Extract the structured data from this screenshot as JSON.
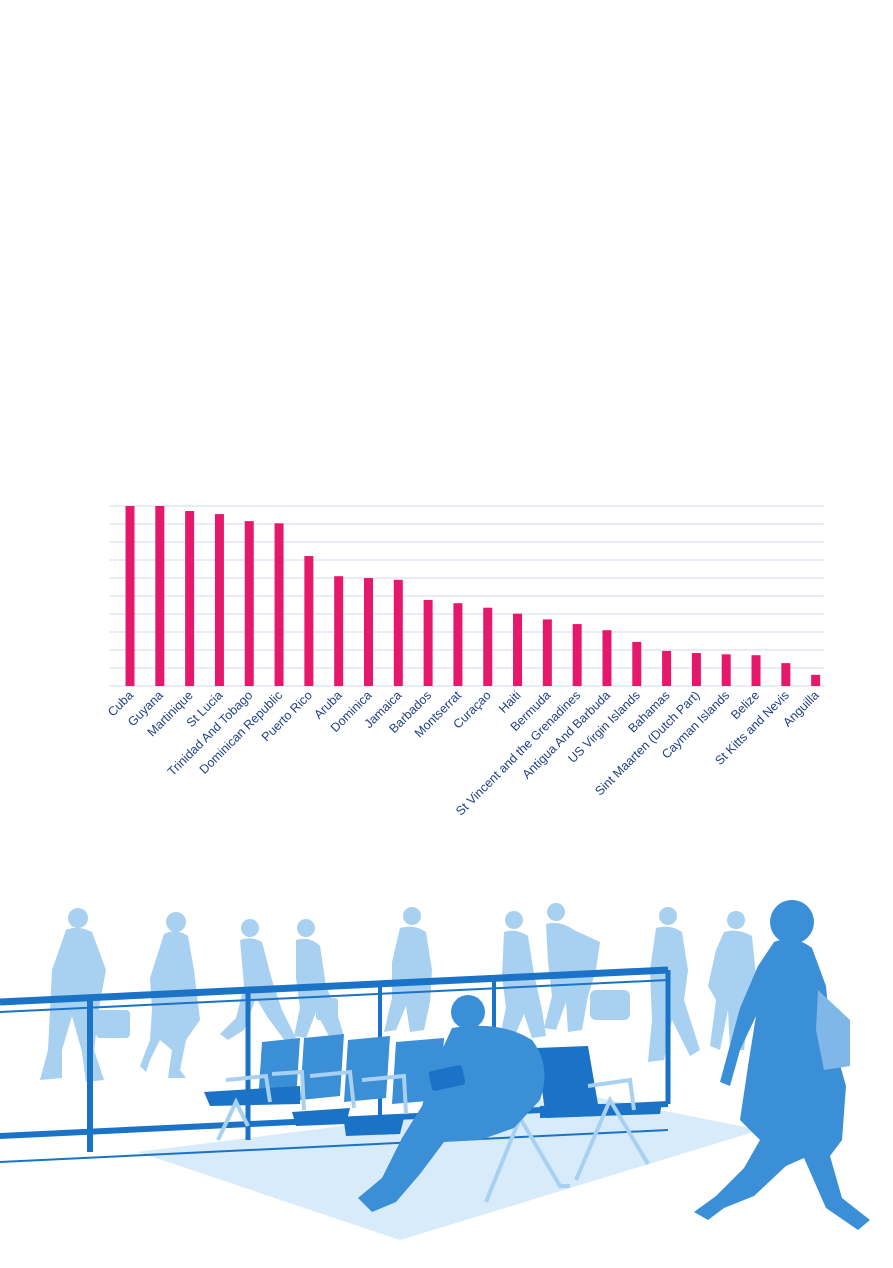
{
  "chart_data": {
    "type": "bar",
    "categories": [
      "Cuba",
      "Guyana",
      "Martinique",
      "St Lucia",
      "Trinidad And Tobago",
      "Dominican Republic",
      "Puerto Rico",
      "Aruba",
      "Dominica",
      "Jamaica",
      "Barbados",
      "Montserrat",
      "Curaçao",
      "Haiti",
      "Bermuda",
      "St Vincent and the Grenadines",
      "Antigua And Barbuda",
      "US Virgin Islands",
      "Bahamas",
      "Sint Maarten (Dutch Part)",
      "Cayman Islands",
      "Belize",
      "St Kitts and Nevis",
      "Anguilla"
    ],
    "values": [
      100,
      100,
      97.2,
      95.5,
      91.6,
      90.4,
      72.2,
      61,
      60,
      59,
      47.8,
      46,
      43.5,
      40.2,
      37,
      34.4,
      31,
      24.5,
      19.5,
      18.3,
      17.6,
      17.1,
      12.7,
      6.2
    ],
    "title": "",
    "xlabel": "",
    "ylabel": "",
    "ylim": [
      0,
      100
    ],
    "grid": true,
    "bar_color": "#e6186c",
    "grid_color": "#cfd9ee",
    "label_color": "#1f3f8a"
  },
  "illustration": {
    "description_icon": "airport-waiting-area-illustration",
    "colors": {
      "light": "#a8d0f0",
      "mid": "#7fb8e8",
      "dark": "#3b8fd6",
      "deep": "#1a73c7",
      "floor": "#d7ebfa"
    }
  }
}
